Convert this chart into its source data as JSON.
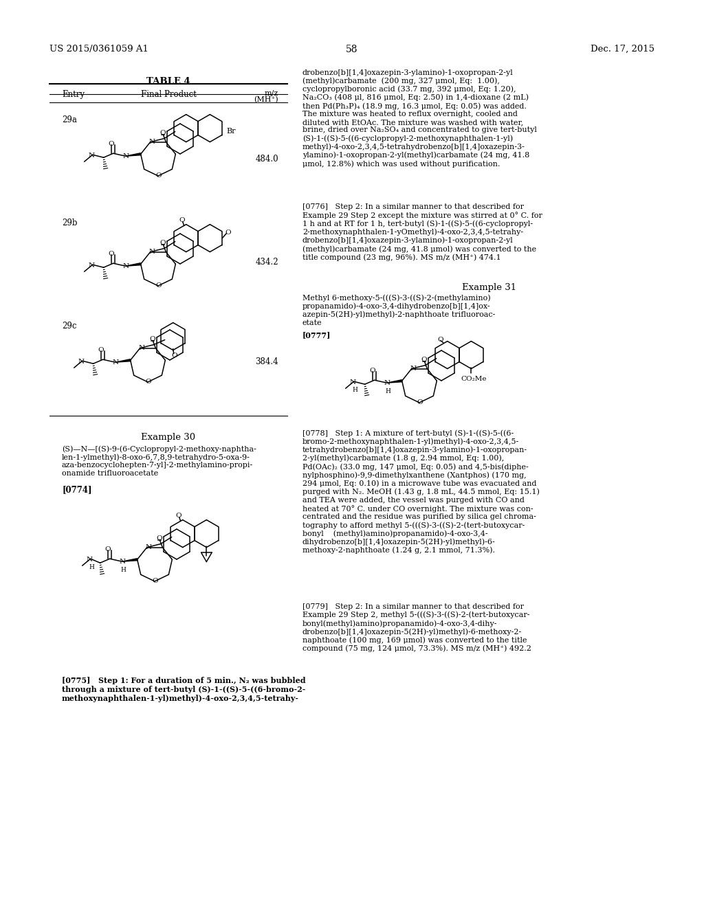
{
  "page_number": "58",
  "patent_number": "US 2015/0361059 A1",
  "patent_date": "Dec. 17, 2015",
  "table_title": "TABLE 4",
  "col_entry": "Entry",
  "col_product": "Final Product",
  "col_mz": "m/z",
  "col_mz2": "(MH⁺)",
  "entries": [
    "29a",
    "29b",
    "29c"
  ],
  "mz_values": [
    "484.0",
    "434.2",
    "384.4"
  ],
  "example30_title": "Example 30",
  "example30_name": "(S)—N—[(S)-9-(6-Cyclopropyl-2-methoxy-naphtha-\nlen-1-ylmethyl)-8-oxo-6,7,8,9-tetrahydro-5-oxa-9-\naza-benzocyclohepten-7-yl]-2-methylamino-propi-\nonamide trifluoroacetate",
  "example30_ref": "[0774]",
  "example31_title": "Example 31",
  "example31_name": "Methyl 6-methoxy-5-(((S)-3-((S)-2-(methylamino)\npropanamido)-4-oxo-3,4-dihydrobenzo[b][1,4]ox-\nazepin-5(2H)-yl)methyl)-2-naphthoate trifluoroac-\netate",
  "example31_ref": "[0777]",
  "right_top_text": "drobenzo[b][1,4]oxazepin-3-ylamino)-1-oxopropan-2-yl\n(methyl)carbamate  (200 mg, 327 μmol, Eq:  1.00),\ncyclopropylboronic acid (33.7 mg, 392 μmol, Eq: 1.20),\nNa₂CO₃ (408 μl, 816 μmol, Eq: 2.50) in 1,4-dioxane (2 mL)\nthen Pd(Ph₃P)₄ (18.9 mg, 16.3 μmol, Eq: 0.05) was added.\nThe mixture was heated to reflux overnight, cooled and\ndiluted with EtOAc. The mixture was washed with water,\nbrine, dried over Na₂SO₄ and concentrated to give tert-butyl\n(S)-1-((S)-5-((6-cyclopropyl-2-methoxynaphthalen-1-yl)\nmethyl)-4-oxo-2,3,4,5-tetrahydrobenzo[b][1,4]oxazepin-3-\nylamino)-1-oxopropan-2-yl(methyl)carbamate (24 mg, 41.8\nμmol, 12.8%) which was used without purification.",
  "ref0776_text": "[0776]   Step 2: In a similar manner to that described for\nExample 29 Step 2 except the mixture was stirred at 0° C. for\n1 h and at RT for 1 h, tert-butyl (S)-1-((S)-5-((6-cyclopropyl-\n2-methoxynaphthalen-1-yOmethyl)-4-oxo-2,3,4,5-tetrahy-\ndrobenzo[b][1,4]oxazepin-3-ylamino)-1-oxopropan-2-yl\n(methyl)carbamate (24 mg, 41.8 μmol) was converted to the\ntitle compound (23 mg, 96%). MS m/z (MH⁺) 474.1",
  "ref0778_text": "[0778]   Step 1: A mixture of tert-butyl (S)-1-((S)-5-((6-\nbromo-2-methoxynaphthalen-1-yl)methyl)-4-oxo-2,3,4,5-\ntetrahydrobenzo[b][1,4]oxazepin-3-ylamino)-1-oxopropan-\n2-yl(methyl)carbamate (1.8 g, 2.94 mmol, Eq: 1.00),\nPd(OAc)₂ (33.0 mg, 147 μmol, Eq: 0.05) and 4,5-bis(diphe-\nnylphosphino)-9,9-dimethylxanthene (Xantphos) (170 mg,\n294 μmol, Eq: 0.10) in a microwave tube was evacuated and\npurged with N₂. MeOH (1.43 g, 1.8 mL, 44.5 mmol, Eq: 15.1)\nand TEA were added, the vessel was purged with CO and\nheated at 70° C. under CO overnight. The mixture was con-\ncentrated and the residue was purified by silica gel chroma-\ntography to afford methyl 5-(((S)-3-((S)-2-(tert-butoxycar-\nbonyl    (methyl)amino)propanamido)-4-oxo-3,4-\ndihydrobenzo[b][1,4]oxazepin-5(2H)-yl)methyl)-6-\nmethoxy-2-naphthoate (1.24 g, 2.1 mmol, 71.3%).",
  "ref0779_text": "[0779]   Step 2: In a similar manner to that described for\nExample 29 Step 2, methyl 5-(((S)-3-((S)-2-(tert-butoxycar-\nbonyl(methyl)amino)propanamido)-4-oxo-3,4-dihy-\ndrobenzo[b][1,4]oxazepin-5(2H)-yl)methyl)-6-methoxy-2-\nnaphthoate (100 mg, 169 μmol) was converted to the title\ncompound (75 mg, 124 μmol, 73.3%). MS m/z (MH⁺) 492.2",
  "ref0775_text": "[0775]   Step 1: For a duration of 5 min., N₂ was bubbled\nthrough a mixture of tert-butyl (S)-1-((S)-5-((6-bromo-2-\nmethoxynaphthalen-1-yl)methyl)-4-oxo-2,3,4,5-tetrahy-",
  "bg_color": "#ffffff",
  "text_color": "#000000"
}
